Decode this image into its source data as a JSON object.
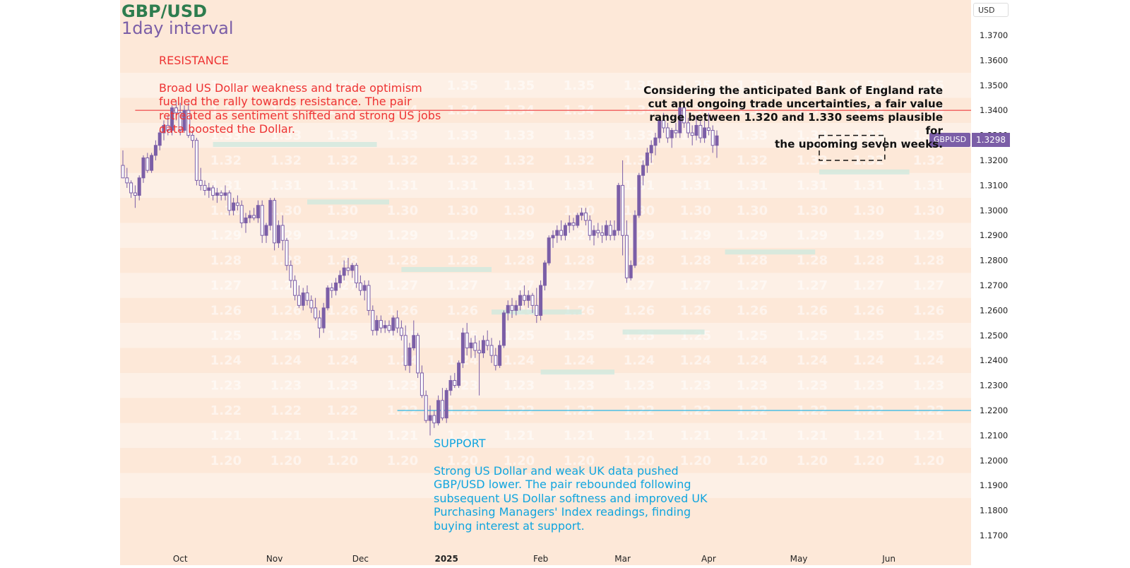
{
  "chart_data": {
    "type": "candlestick",
    "title": "GBP/USD",
    "subtitle": "1day interval",
    "currency_label": "USD",
    "symbol": "GBPUSD",
    "last_price": "1.3298",
    "ylim": [
      1.17,
      1.375
    ],
    "y_ticks": [
      "1.3700",
      "1.3600",
      "1.3500",
      "1.3400",
      "1.3300",
      "1.3200",
      "1.3100",
      "1.3000",
      "1.2900",
      "1.2800",
      "1.2700",
      "1.2600",
      "1.2500",
      "1.2400",
      "1.2300",
      "1.2200",
      "1.2100",
      "1.2000",
      "1.1900",
      "1.1800",
      "1.1700"
    ],
    "x_ticks": [
      {
        "label": "Oct",
        "bar": 14
      },
      {
        "label": "Nov",
        "bar": 37
      },
      {
        "label": "Dec",
        "bar": 58
      },
      {
        "label": "2025",
        "bar": 79
      },
      {
        "label": "Feb",
        "bar": 102
      },
      {
        "label": "Mar",
        "bar": 122
      },
      {
        "label": "Apr",
        "bar": 143
      },
      {
        "label": "May",
        "bar": 165
      },
      {
        "label": "Jun",
        "bar": 187
      }
    ],
    "ohlc": [
      [
        1.318,
        1.324,
        1.313,
        1.313
      ],
      [
        1.313,
        1.317,
        1.309,
        1.311
      ],
      [
        1.311,
        1.312,
        1.305,
        1.307
      ],
      [
        1.307,
        1.31,
        1.301,
        1.306
      ],
      [
        1.306,
        1.314,
        1.304,
        1.313
      ],
      [
        1.313,
        1.322,
        1.311,
        1.321
      ],
      [
        1.321,
        1.323,
        1.315,
        1.316
      ],
      [
        1.316,
        1.323,
        1.315,
        1.322
      ],
      [
        1.322,
        1.328,
        1.32,
        1.326
      ],
      [
        1.326,
        1.332,
        1.324,
        1.331
      ],
      [
        1.331,
        1.336,
        1.328,
        1.334
      ],
      [
        1.334,
        1.338,
        1.33,
        1.332
      ],
      [
        1.332,
        1.342,
        1.33,
        1.341
      ],
      [
        1.341,
        1.344,
        1.336,
        1.339
      ],
      [
        1.339,
        1.343,
        1.33,
        1.332
      ],
      [
        1.332,
        1.342,
        1.331,
        1.34
      ],
      [
        1.34,
        1.343,
        1.329,
        1.33
      ],
      [
        1.33,
        1.332,
        1.325,
        1.328
      ],
      [
        1.328,
        1.329,
        1.31,
        1.312
      ],
      [
        1.312,
        1.317,
        1.308,
        1.31
      ],
      [
        1.31,
        1.312,
        1.306,
        1.308
      ],
      [
        1.308,
        1.311,
        1.305,
        1.309
      ],
      [
        1.309,
        1.31,
        1.304,
        1.306
      ],
      [
        1.306,
        1.309,
        1.303,
        1.307
      ],
      [
        1.307,
        1.308,
        1.304,
        1.306
      ],
      [
        1.306,
        1.31,
        1.304,
        1.307
      ],
      [
        1.307,
        1.308,
        1.298,
        1.3
      ],
      [
        1.3,
        1.305,
        1.298,
        1.303
      ],
      [
        1.303,
        1.306,
        1.3,
        1.302
      ],
      [
        1.302,
        1.304,
        1.293,
        1.295
      ],
      [
        1.295,
        1.299,
        1.291,
        1.297
      ],
      [
        1.297,
        1.3,
        1.295,
        1.298
      ],
      [
        1.298,
        1.301,
        1.296,
        1.297
      ],
      [
        1.297,
        1.304,
        1.295,
        1.302
      ],
      [
        1.302,
        1.304,
        1.287,
        1.29
      ],
      [
        1.29,
        1.295,
        1.287,
        1.294
      ],
      [
        1.294,
        1.305,
        1.292,
        1.304
      ],
      [
        1.304,
        1.305,
        1.284,
        1.287
      ],
      [
        1.287,
        1.296,
        1.285,
        1.294
      ],
      [
        1.294,
        1.298,
        1.284,
        1.288
      ],
      [
        1.288,
        1.289,
        1.276,
        1.278
      ],
      [
        1.278,
        1.28,
        1.269,
        1.272
      ],
      [
        1.272,
        1.274,
        1.264,
        1.266
      ],
      [
        1.266,
        1.27,
        1.261,
        1.262
      ],
      [
        1.262,
        1.269,
        1.26,
        1.267
      ],
      [
        1.267,
        1.27,
        1.262,
        1.264
      ],
      [
        1.264,
        1.266,
        1.259,
        1.261
      ],
      [
        1.261,
        1.265,
        1.256,
        1.257
      ],
      [
        1.257,
        1.26,
        1.249,
        1.253
      ],
      [
        1.253,
        1.263,
        1.251,
        1.261
      ],
      [
        1.261,
        1.27,
        1.26,
        1.269
      ],
      [
        1.269,
        1.271,
        1.265,
        1.268
      ],
      [
        1.268,
        1.273,
        1.266,
        1.271
      ],
      [
        1.271,
        1.276,
        1.269,
        1.274
      ],
      [
        1.274,
        1.28,
        1.272,
        1.277
      ],
      [
        1.277,
        1.281,
        1.274,
        1.276
      ],
      [
        1.276,
        1.279,
        1.273,
        1.278
      ],
      [
        1.278,
        1.279,
        1.269,
        1.271
      ],
      [
        1.271,
        1.274,
        1.266,
        1.268
      ],
      [
        1.268,
        1.272,
        1.264,
        1.27
      ],
      [
        1.27,
        1.272,
        1.258,
        1.26
      ],
      [
        1.26,
        1.262,
        1.25,
        1.252
      ],
      [
        1.252,
        1.258,
        1.25,
        1.256
      ],
      [
        1.256,
        1.258,
        1.251,
        1.253
      ],
      [
        1.253,
        1.256,
        1.251,
        1.254
      ],
      [
        1.254,
        1.256,
        1.251,
        1.252
      ],
      [
        1.252,
        1.258,
        1.25,
        1.257
      ],
      [
        1.257,
        1.26,
        1.251,
        1.253
      ],
      [
        1.253,
        1.256,
        1.248,
        1.25
      ],
      [
        1.25,
        1.254,
        1.236,
        1.238
      ],
      [
        1.238,
        1.247,
        1.235,
        1.245
      ],
      [
        1.245,
        1.256,
        1.244,
        1.25
      ],
      [
        1.25,
        1.251,
        1.233,
        1.235
      ],
      [
        1.235,
        1.238,
        1.225,
        1.226
      ],
      [
        1.226,
        1.228,
        1.215,
        1.216
      ],
      [
        1.216,
        1.222,
        1.21,
        1.218
      ],
      [
        1.218,
        1.22,
        1.213,
        1.215
      ],
      [
        1.215,
        1.226,
        1.214,
        1.224
      ],
      [
        1.224,
        1.229,
        1.216,
        1.217
      ],
      [
        1.217,
        1.229,
        1.215,
        1.228
      ],
      [
        1.228,
        1.234,
        1.226,
        1.232
      ],
      [
        1.232,
        1.235,
        1.229,
        1.23
      ],
      [
        1.23,
        1.24,
        1.229,
        1.239
      ],
      [
        1.239,
        1.253,
        1.237,
        1.251
      ],
      [
        1.251,
        1.255,
        1.242,
        1.245
      ],
      [
        1.245,
        1.249,
        1.241,
        1.247
      ],
      [
        1.247,
        1.25,
        1.241,
        1.244
      ],
      [
        1.244,
        1.248,
        1.226,
        1.243
      ],
      [
        1.243,
        1.25,
        1.241,
        1.248
      ],
      [
        1.248,
        1.252,
        1.244,
        1.246
      ],
      [
        1.246,
        1.249,
        1.239,
        1.242
      ],
      [
        1.242,
        1.245,
        1.236,
        1.238
      ],
      [
        1.238,
        1.248,
        1.237,
        1.246
      ],
      [
        1.246,
        1.26,
        1.245,
        1.259
      ],
      [
        1.259,
        1.264,
        1.256,
        1.262
      ],
      [
        1.262,
        1.265,
        1.257,
        1.26
      ],
      [
        1.26,
        1.264,
        1.258,
        1.262
      ],
      [
        1.262,
        1.268,
        1.26,
        1.266
      ],
      [
        1.266,
        1.27,
        1.262,
        1.264
      ],
      [
        1.264,
        1.268,
        1.261,
        1.266
      ],
      [
        1.266,
        1.267,
        1.259,
        1.262
      ],
      [
        1.262,
        1.269,
        1.255,
        1.258
      ],
      [
        1.258,
        1.272,
        1.256,
        1.27
      ],
      [
        1.27,
        1.28,
        1.268,
        1.279
      ],
      [
        1.279,
        1.29,
        1.278,
        1.289
      ],
      [
        1.289,
        1.292,
        1.285,
        1.29
      ],
      [
        1.29,
        1.294,
        1.287,
        1.292
      ],
      [
        1.292,
        1.296,
        1.288,
        1.29
      ],
      [
        1.29,
        1.295,
        1.288,
        1.294
      ],
      [
        1.294,
        1.298,
        1.291,
        1.295
      ],
      [
        1.295,
        1.297,
        1.292,
        1.294
      ],
      [
        1.294,
        1.299,
        1.293,
        1.298
      ],
      [
        1.298,
        1.301,
        1.296,
        1.299
      ],
      [
        1.299,
        1.301,
        1.294,
        1.296
      ],
      [
        1.296,
        1.298,
        1.288,
        1.29
      ],
      [
        1.29,
        1.294,
        1.286,
        1.292
      ],
      [
        1.292,
        1.295,
        1.289,
        1.291
      ],
      [
        1.291,
        1.294,
        1.287,
        1.29
      ],
      [
        1.29,
        1.296,
        1.288,
        1.294
      ],
      [
        1.294,
        1.296,
        1.288,
        1.29
      ],
      [
        1.29,
        1.296,
        1.288,
        1.292
      ],
      [
        1.292,
        1.311,
        1.29,
        1.31
      ],
      [
        1.31,
        1.32,
        1.282,
        1.29
      ],
      [
        1.29,
        1.296,
        1.271,
        1.273
      ],
      [
        1.273,
        1.28,
        1.272,
        1.278
      ],
      [
        1.278,
        1.3,
        1.277,
        1.298
      ],
      [
        1.298,
        1.315,
        1.297,
        1.314
      ],
      [
        1.314,
        1.32,
        1.31,
        1.318
      ],
      [
        1.318,
        1.325,
        1.315,
        1.323
      ],
      [
        1.323,
        1.328,
        1.319,
        1.326
      ],
      [
        1.326,
        1.331,
        1.322,
        1.329
      ],
      [
        1.329,
        1.338,
        1.327,
        1.336
      ],
      [
        1.336,
        1.339,
        1.331,
        1.333
      ],
      [
        1.333,
        1.335,
        1.327,
        1.329
      ],
      [
        1.329,
        1.333,
        1.325,
        1.332
      ],
      [
        1.332,
        1.335,
        1.329,
        1.331
      ],
      [
        1.331,
        1.343,
        1.329,
        1.341
      ],
      [
        1.341,
        1.344,
        1.333,
        1.335
      ],
      [
        1.335,
        1.337,
        1.329,
        1.331
      ],
      [
        1.331,
        1.334,
        1.326,
        1.33
      ],
      [
        1.33,
        1.338,
        1.328,
        1.334
      ],
      [
        1.334,
        1.336,
        1.327,
        1.329
      ],
      [
        1.329,
        1.336,
        1.327,
        1.333
      ],
      [
        1.333,
        1.339,
        1.33,
        1.332
      ],
      [
        1.332,
        1.334,
        1.323,
        1.326
      ],
      [
        1.326,
        1.332,
        1.321,
        1.3298
      ]
    ],
    "horizontal_lines": [
      {
        "name": "resistance",
        "value": 1.34,
        "from_bar": 3,
        "color": "#f05a5a"
      },
      {
        "name": "support",
        "value": 1.22,
        "from_bar": 67,
        "color": "#2ab6e6"
      }
    ],
    "forecast_box": {
      "from_bar": 170,
      "to_bar": 186,
      "low": 1.32,
      "high": 1.33
    },
    "watermark_levels": [
      "1.35",
      "1.34",
      "1.33",
      "1.32",
      "1.31",
      "1.30",
      "1.29",
      "1.28",
      "1.27",
      "1.26",
      "1.25",
      "1.24",
      "1.23",
      "1.22",
      "1.21",
      "1.20"
    ],
    "annotations": {
      "resistance_title": "RESISTANCE",
      "resistance_text": "Broad US Dollar weakness and trade optimism\nfuelled the rally towards resistance. The pair\nretreated as sentiment shifted and strong US jobs\ndata boosted the Dollar.",
      "support_title": "SUPPORT",
      "support_text": "Strong US Dollar and weak UK data pushed\nGBP/USD lower. The pair rebounded following\nsubsequent US Dollar softness and improved UK\nPurchasing Managers' Index readings, finding\nbuying interest at support.",
      "outlook_text": "Considering the anticipated Bank of England rate\ncut and ongoing trade uncertainties, a fair value\nrange between 1.320 and 1.330 seems plausible for\nthe upcoming seven weeks."
    },
    "colors": {
      "up": "#7b5ea7",
      "down": "#7b5ea7",
      "background": "#fde8d8",
      "band_light": "#fdf1e9",
      "resistance": "#f05a5a",
      "support": "#2ab6e6",
      "title": "#2e7d4f",
      "subtitle": "#7b5ea7"
    }
  }
}
